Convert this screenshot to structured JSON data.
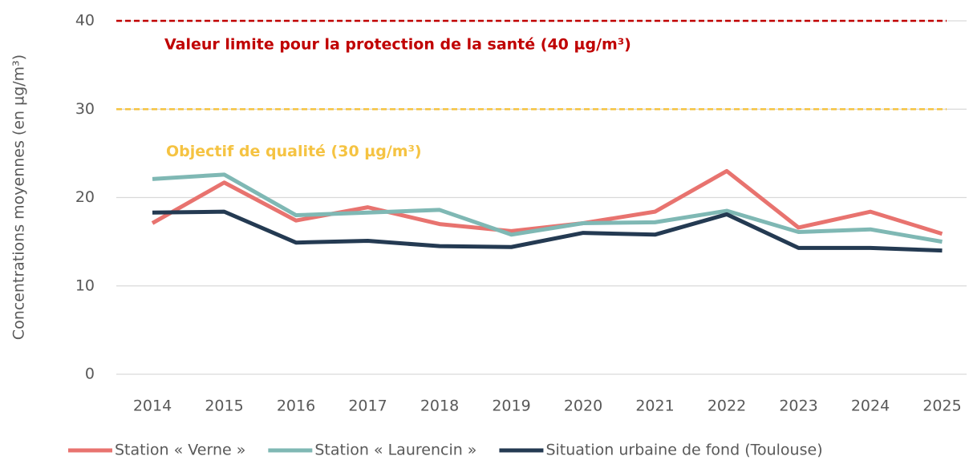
{
  "chart_data": {
    "type": "line",
    "y_label": "Concentrations moyennes (en µg/m³)",
    "categories": [
      "2014",
      "2015",
      "2016",
      "2017",
      "2018",
      "2019",
      "2020",
      "2021",
      "2022",
      "2023",
      "2024",
      "2025"
    ],
    "series": [
      {
        "name": "Station « Verne »",
        "color": "#e8736f",
        "values": [
          17.1,
          21.7,
          17.4,
          18.9,
          17.0,
          16.2,
          17.1,
          18.4,
          23.0,
          16.6,
          18.4,
          15.9
        ]
      },
      {
        "name": "Station « Laurencin »",
        "color": "#7fb8b4",
        "values": [
          22.1,
          22.6,
          18.0,
          18.3,
          18.6,
          15.8,
          17.1,
          17.2,
          18.5,
          16.1,
          16.4,
          15.0
        ]
      },
      {
        "name": "Situation urbaine de fond (Toulouse)",
        "color": "#243a52",
        "values": [
          18.3,
          18.4,
          14.9,
          15.1,
          14.5,
          14.4,
          16.0,
          15.8,
          18.1,
          14.3,
          14.3,
          14.0
        ]
      }
    ],
    "reference_lines": [
      {
        "value": 40,
        "label": "Valeur limite pour la protection de la santé (40 µg/m³)",
        "color": "#c00000"
      },
      {
        "value": 30,
        "label": "Objectif de qualité (30 µg/m³)",
        "color": "#f5c342"
      }
    ],
    "ylim": [
      0,
      40
    ],
    "yticks": [
      0,
      10,
      20,
      30,
      40
    ],
    "grid": true,
    "legend": "bottom"
  }
}
